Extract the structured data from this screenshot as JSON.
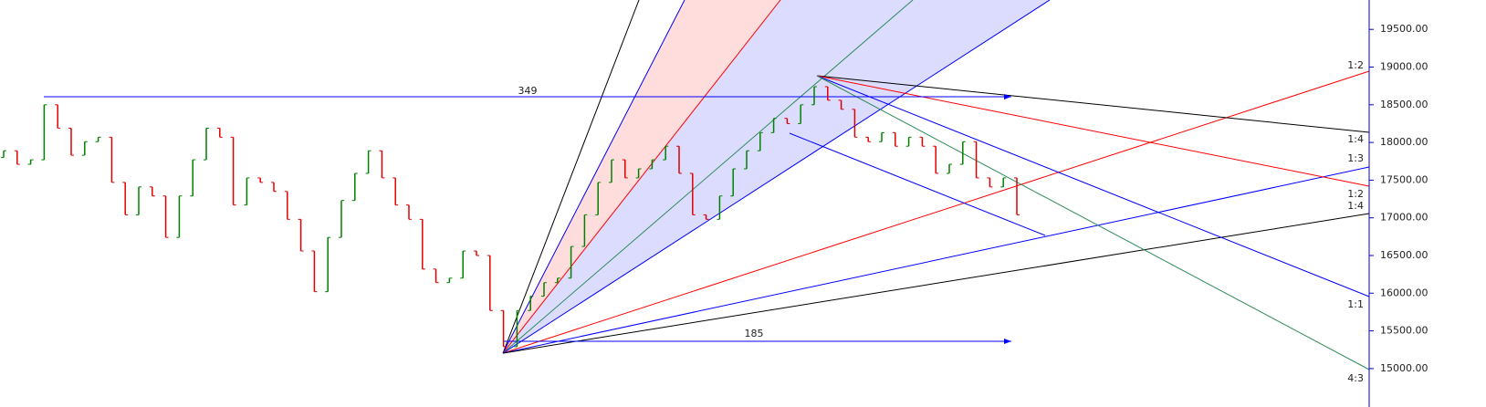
{
  "chart_data": {
    "type": "ohlc",
    "ylim": [
      14490,
      19890
    ],
    "yticks": [
      {
        "value": 15000,
        "label": "15000.00"
      },
      {
        "value": 15500,
        "label": "15500.00"
      },
      {
        "value": 16000,
        "label": "16000.00"
      },
      {
        "value": 16500,
        "label": "16500.00"
      },
      {
        "value": 17000,
        "label": "17000.00"
      },
      {
        "value": 17500,
        "label": "17500.00"
      },
      {
        "value": 18000,
        "label": "18000.00"
      },
      {
        "value": 18500,
        "label": "18500.00"
      },
      {
        "value": 19000,
        "label": "19000.00"
      },
      {
        "value": 19500,
        "label": "19500.00"
      }
    ],
    "up_color": "#008000",
    "down_color": "#e00000",
    "axis_color": "#0000cc",
    "open": [
      17800,
      17890,
      17710,
      17770,
      18500,
      18190,
      17830,
      18010,
      18070,
      17470,
      17040,
      17410,
      17290,
      16740,
      17290,
      17770,
      18190,
      18070,
      17170,
      17530,
      17470,
      17350,
      16980,
      16560,
      16020,
      16740,
      17230,
      17590,
      17890,
      17530,
      17170,
      16980,
      16320,
      16140,
      16200,
      16560,
      16500,
      15770,
      15290,
      15770,
      15960,
      16140,
      16200,
      16620,
      17040,
      17470,
      17770,
      17530,
      17650,
      17770,
      17950,
      17590,
      17040,
      16980,
      17290,
      17650,
      17890,
      18130,
      18320,
      18250,
      18500,
      18740,
      18560,
      18440,
      18070,
      18010,
      18130,
      17950,
      18070,
      17950,
      17590,
      17710,
      18010,
      17530,
      17410,
      17530
    ],
    "close": [
      17890,
      17710,
      17770,
      18500,
      18190,
      17830,
      18010,
      18070,
      17470,
      17040,
      17410,
      17290,
      16740,
      17290,
      17770,
      18190,
      18070,
      17170,
      17530,
      17470,
      17350,
      16980,
      16560,
      16020,
      16740,
      17230,
      17590,
      17890,
      17530,
      17170,
      16980,
      16320,
      16140,
      16200,
      16560,
      16500,
      15770,
      15290,
      15770,
      15960,
      16140,
      16200,
      16620,
      17040,
      17470,
      17770,
      17530,
      17650,
      17770,
      17950,
      17590,
      17040,
      16980,
      17290,
      17650,
      17890,
      18130,
      18320,
      18250,
      18500,
      18740,
      18560,
      18440,
      18070,
      18010,
      18130,
      17950,
      18070,
      17950,
      17590,
      17710,
      18010,
      17530,
      17410,
      17530,
      17040
    ],
    "annotations": [
      "349",
      "185",
      "1:2",
      "1:4",
      "1:3",
      "1:2",
      "1:4",
      "1:1",
      "4:3"
    ]
  }
}
